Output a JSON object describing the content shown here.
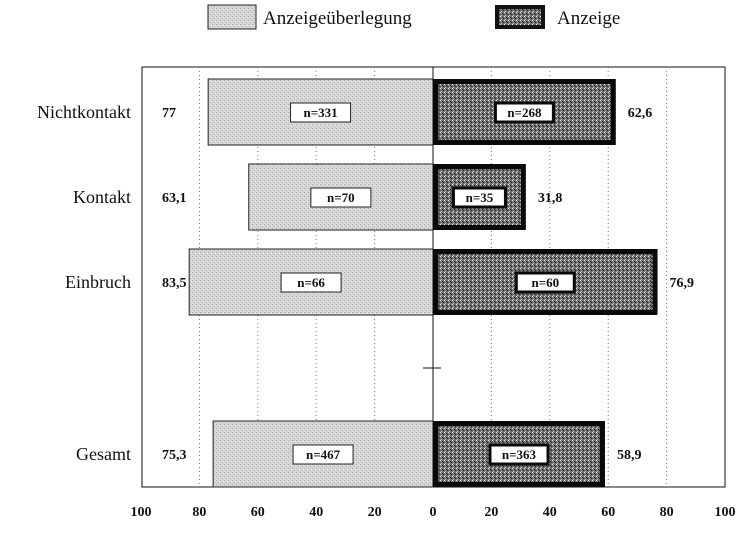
{
  "chart_data": {
    "type": "bar",
    "orientation": "horizontal-diverging",
    "legend": [
      {
        "key": "considered",
        "label": "Anzeigeüberlegung"
      },
      {
        "key": "reported",
        "label": "Anzeige"
      }
    ],
    "categories": [
      "Nichtkontakt",
      "Kontakt",
      "Einbruch",
      "Gesamt"
    ],
    "series": [
      {
        "name": "Anzeigeüberlegung",
        "side": "left",
        "values": [
          77,
          63.1,
          83.5,
          75.3
        ],
        "value_labels": [
          "77",
          "63,1",
          "83,5",
          "75,3"
        ],
        "n_labels": [
          "n=331",
          "n=70",
          "n=66",
          "n=467"
        ]
      },
      {
        "name": "Anzeige",
        "side": "right",
        "values": [
          62.6,
          31.8,
          76.9,
          58.9
        ],
        "value_labels": [
          "62,6",
          "31,8",
          "76,9",
          "58,9"
        ],
        "n_labels": [
          "n=268",
          "n=35",
          "n=60",
          "n=363"
        ]
      }
    ],
    "xlim": [
      -100,
      100
    ],
    "x_ticks": [
      "100",
      "80",
      "60",
      "40",
      "20",
      "0",
      "20",
      "40",
      "60",
      "80",
      "100"
    ],
    "grid": "vertical-dotted",
    "legend_position": "top"
  }
}
